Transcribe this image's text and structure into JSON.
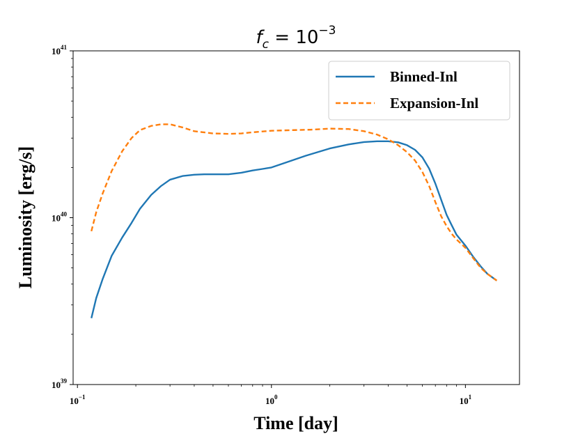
{
  "chart_data": {
    "type": "line",
    "title": "f_c = 10^-3",
    "title_parts": {
      "base": "f",
      "subscript": "c",
      "equals": " = 10",
      "exponent": "−3"
    },
    "xlabel": "Time [day]",
    "ylabel": "Luminosity [erg/s]",
    "x_scale": "log",
    "y_scale": "log",
    "xlim": [
      0.095,
      19
    ],
    "ylim": [
      1e+39,
      1e+41
    ],
    "x_ticks": [
      {
        "value": 0.1,
        "base": "10",
        "exp": "−1"
      },
      {
        "value": 1,
        "base": "10",
        "exp": "0"
      },
      {
        "value": 10,
        "base": "10",
        "exp": "1"
      }
    ],
    "y_ticks": [
      {
        "value": 1e+39,
        "base": "10",
        "exp": "39"
      },
      {
        "value": 1e+40,
        "base": "10",
        "exp": "40"
      },
      {
        "value": 1e+41,
        "base": "10",
        "exp": "41"
      }
    ],
    "legend_position": "top-right",
    "series": [
      {
        "name": "Binned-Inl",
        "style": "solid",
        "color": "#1f77b4",
        "x": [
          0.118,
          0.125,
          0.135,
          0.15,
          0.17,
          0.19,
          0.21,
          0.24,
          0.27,
          0.3,
          0.35,
          0.4,
          0.45,
          0.5,
          0.55,
          0.6,
          0.7,
          0.8,
          0.9,
          1.0,
          1.2,
          1.5,
          2.0,
          2.5,
          3.0,
          3.5,
          4.0,
          4.5,
          5.0,
          5.5,
          6.0,
          6.5,
          7.0,
          7.5,
          8.0,
          8.5,
          9.0,
          10.0,
          11.0,
          12.0,
          13.0,
          14.5
        ],
        "values": [
          2.5e+39,
          3.3e+39,
          4.3e+39,
          5.9e+39,
          7.6e+39,
          9.3e+39,
          1.13e+40,
          1.37e+40,
          1.55e+40,
          1.69e+40,
          1.78e+40,
          1.81e+40,
          1.82e+40,
          1.82e+40,
          1.82e+40,
          1.82e+40,
          1.86e+40,
          1.92e+40,
          1.96e+40,
          2e+40,
          2.15e+40,
          2.35e+40,
          2.6e+40,
          2.75e+40,
          2.84e+40,
          2.87e+40,
          2.87e+40,
          2.83e+40,
          2.72e+40,
          2.55e+40,
          2.3e+40,
          1.97e+40,
          1.6e+40,
          1.28e+40,
          1.04e+40,
          9e+39,
          7.9e+39,
          6.8e+39,
          5.8e+39,
          5.1e+39,
          4.6e+39,
          4.2e+39
        ]
      },
      {
        "name": "Expansion-Inl",
        "style": "dashed",
        "color": "#ff7f0e",
        "x": [
          0.118,
          0.125,
          0.135,
          0.15,
          0.17,
          0.19,
          0.21,
          0.24,
          0.27,
          0.3,
          0.35,
          0.4,
          0.5,
          0.6,
          0.7,
          0.8,
          1.0,
          1.3,
          1.6,
          2.0,
          2.5,
          3.0,
          3.5,
          4.0,
          4.5,
          5.0,
          5.5,
          6.0,
          6.5,
          7.0,
          7.5,
          8.0,
          8.5,
          9.0,
          10.0,
          11.0,
          12.0,
          13.0,
          14.5
        ],
        "values": [
          8.3e+39,
          1.08e+40,
          1.4e+40,
          1.9e+40,
          2.5e+40,
          3e+40,
          3.35e+40,
          3.55e+40,
          3.63e+40,
          3.63e+40,
          3.47e+40,
          3.3e+40,
          3.2e+40,
          3.18e+40,
          3.2e+40,
          3.25e+40,
          3.32e+40,
          3.35e+40,
          3.37e+40,
          3.42e+40,
          3.4e+40,
          3.3e+40,
          3.15e+40,
          2.95e+40,
          2.72e+40,
          2.47e+40,
          2.2e+40,
          1.88e+40,
          1.55e+40,
          1.24e+40,
          1.02e+40,
          8.9e+39,
          8e+39,
          7.4e+39,
          6.6e+39,
          5.7e+39,
          5e+39,
          4.6e+39,
          4.2e+39
        ]
      }
    ]
  }
}
